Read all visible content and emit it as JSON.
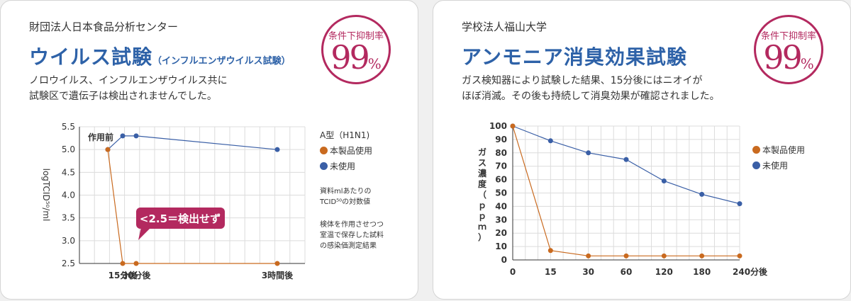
{
  "colors": {
    "product": "#c96a1f",
    "unused": "#3a5fa6",
    "accent": "#b3295f",
    "title": "#2e62a8"
  },
  "left": {
    "org": "財団法人日本食品分析センター",
    "title": "ウイルス試験",
    "title_sub": "（インフルエンザウイルス試験）",
    "description": [
      "ノロウイルス、インフルエンザウイルス共に",
      "試験区で遺伝子は検出されませんでした。"
    ],
    "badge": {
      "label": "条件下抑制率",
      "value": "99",
      "unit": "%"
    },
    "legend": {
      "title": "A型（H1N1)",
      "product": "本製品使用",
      "unused": "未使用"
    },
    "note1": "資料mlあたりの\nTCID⁵⁰の対数値",
    "note2": "検体を作用させつつ\n室温で保存した試料\nの感染価測定結果"
  },
  "right": {
    "org": "学校法人福山大学",
    "title": "アンモニア消臭効果試験",
    "description": [
      "ガス検知器により試験した結果、15分後にはニオイが",
      "ほぼ消滅。その後も持続して消臭効果が確認されました。"
    ],
    "badge": {
      "label": "条件下抑制率",
      "value": "99",
      "unit": "%"
    },
    "legend": {
      "product": "本製品使用",
      "unused": "未使用"
    }
  },
  "chart_data": [
    {
      "type": "line",
      "ylabel": "logTCID⁵⁰/ml",
      "ylim": [
        2.5,
        5.5
      ],
      "yticks": [
        2.5,
        3.0,
        3.5,
        4.0,
        4.5,
        5.0,
        5.5
      ],
      "ytick_labels": [
        "2.5",
        "3.0",
        "3.5",
        "4.0",
        "4.5",
        "5.0",
        "5.5"
      ],
      "xtick_labels": [
        "15分後",
        "30分後",
        "3時間後"
      ],
      "annotations": [
        "作用前",
        "<2.5＝検出せず"
      ],
      "grid": true,
      "legend_position": "right",
      "series": [
        {
          "name": "本製品使用",
          "x": [
            0,
            1,
            2,
            3
          ],
          "y": [
            5.0,
            2.5,
            2.5,
            2.5
          ]
        },
        {
          "name": "未使用",
          "x": [
            0,
            1,
            2,
            3
          ],
          "y": [
            5.0,
            5.3,
            5.3,
            5.0
          ]
        }
      ]
    },
    {
      "type": "line",
      "ylabel": "ガス濃度（ｐｐｍ）",
      "ylim": [
        0,
        100
      ],
      "yticks": [
        0,
        10,
        20,
        30,
        40,
        50,
        60,
        70,
        80,
        90,
        100
      ],
      "xtick_labels": [
        "0",
        "15",
        "30",
        "60",
        "120",
        "180",
        "240分後"
      ],
      "grid": true,
      "legend_position": "right",
      "series": [
        {
          "name": "本製品使用",
          "y": [
            100,
            7,
            3,
            3,
            3,
            3,
            3
          ]
        },
        {
          "name": "未使用",
          "y": [
            100,
            89,
            80,
            75,
            59,
            49,
            42
          ]
        }
      ]
    }
  ]
}
